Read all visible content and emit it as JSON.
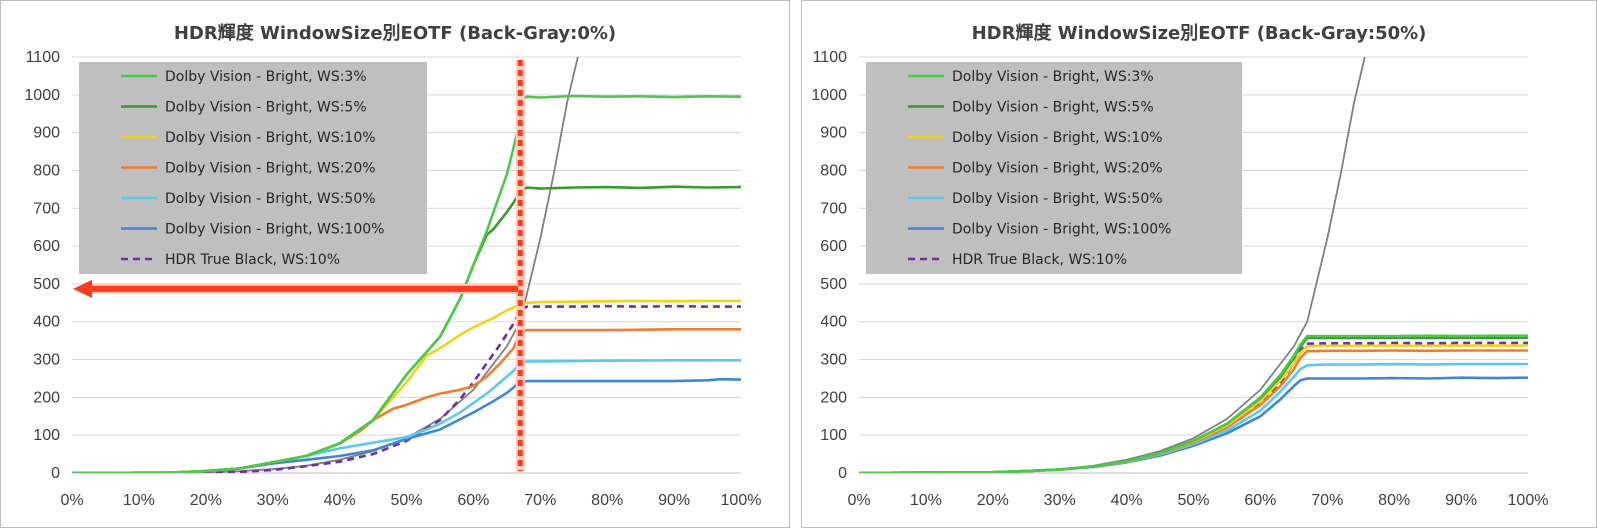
{
  "chart_data": [
    {
      "type": "line",
      "title": "HDR輝度 WindowSize別EOTF (Back-Gray:0%)",
      "xlabel": "",
      "ylabel": "",
      "xlim": [
        0,
        100
      ],
      "ylim": [
        0,
        1100
      ],
      "x_ticks": [
        "0%",
        "10%",
        "20%",
        "30%",
        "40%",
        "50%",
        "60%",
        "70%",
        "80%",
        "90%",
        "100%"
      ],
      "y_ticks": [
        "0",
        "100",
        "200",
        "300",
        "400",
        "500",
        "600",
        "700",
        "800",
        "900",
        "1000",
        "1100"
      ],
      "legend_position": "top-left",
      "grid": "horizontal",
      "annotation": {
        "x": 67,
        "y": 487,
        "color": "#ff3b1f"
      },
      "reference_curve": {
        "color": "#808080",
        "x": [
          0,
          10,
          20,
          25,
          30,
          35,
          40,
          45,
          50,
          55,
          60,
          65,
          67,
          70,
          72,
          74,
          75.6
        ],
        "y": [
          0,
          0.3,
          2,
          5,
          10,
          19,
          35,
          58,
          92,
          143,
          220,
          335,
          400,
          620,
          790,
          980,
          1100
        ]
      },
      "series": [
        {
          "name": "Dolby Vision - Bright, WS:3%",
          "color": "#4cc94c",
          "dash": false,
          "x": [
            0,
            15,
            20,
            25,
            30,
            35,
            40,
            45,
            50,
            53,
            55,
            58,
            60,
            62,
            63,
            65,
            66,
            66.8,
            67,
            68,
            70,
            75,
            80,
            85,
            90,
            95,
            100
          ],
          "y": [
            0,
            1,
            5,
            12,
            28,
            45,
            78,
            140,
            260,
            320,
            360,
            460,
            550,
            640,
            690,
            790,
            860,
            920,
            985,
            995,
            993,
            997,
            995,
            996,
            994,
            996,
            995
          ]
        },
        {
          "name": "Dolby Vision - Bright, WS:5%",
          "color": "#3a9a2e",
          "dash": false,
          "x": [
            0,
            15,
            20,
            25,
            30,
            35,
            40,
            45,
            50,
            53,
            55,
            58,
            60,
            62,
            63,
            65,
            66,
            67,
            68,
            70,
            75,
            80,
            85,
            90,
            95,
            100
          ],
          "y": [
            0,
            1,
            5,
            12,
            28,
            45,
            78,
            140,
            260,
            320,
            360,
            460,
            550,
            630,
            645,
            690,
            715,
            745,
            755,
            752,
            755,
            756,
            754,
            757,
            755,
            756
          ]
        },
        {
          "name": "Dolby Vision - Bright, WS:10%",
          "color": "#f2d21a",
          "dash": false,
          "x": [
            0,
            15,
            20,
            25,
            30,
            35,
            40,
            45,
            50,
            53,
            55,
            58,
            60,
            63,
            65,
            67,
            68,
            70,
            75,
            80,
            85,
            90,
            95,
            100
          ],
          "y": [
            0,
            1,
            5,
            12,
            28,
            45,
            78,
            140,
            240,
            310,
            330,
            365,
            385,
            410,
            430,
            445,
            450,
            452,
            453,
            454,
            455,
            454,
            455,
            455
          ]
        },
        {
          "name": "Dolby Vision - Bright, WS:20%",
          "color": "#ed7d31",
          "dash": false,
          "x": [
            0,
            15,
            20,
            25,
            30,
            35,
            40,
            43,
            45,
            48,
            50,
            53,
            55,
            58,
            60,
            62,
            64,
            66,
            67,
            68,
            70,
            75,
            80,
            85,
            90,
            95,
            100
          ],
          "y": [
            0,
            1,
            5,
            12,
            28,
            45,
            78,
            110,
            140,
            170,
            180,
            200,
            210,
            220,
            230,
            255,
            290,
            330,
            370,
            378,
            378,
            378,
            378,
            379,
            380,
            380,
            380
          ]
        },
        {
          "name": "Dolby Vision - Bright, WS:50%",
          "color": "#5bc8f0",
          "dash": false,
          "x": [
            0,
            15,
            20,
            25,
            30,
            35,
            40,
            45,
            50,
            53,
            55,
            58,
            60,
            62,
            64,
            66,
            67,
            68,
            70,
            80,
            90,
            100
          ],
          "y": [
            0,
            1,
            5,
            12,
            28,
            45,
            65,
            80,
            95,
            115,
            130,
            160,
            185,
            210,
            240,
            270,
            290,
            295,
            295,
            297,
            298,
            298
          ]
        },
        {
          "name": "Dolby Vision - Bright, WS:100%",
          "color": "#3f86d4",
          "dash": false,
          "x": [
            0,
            15,
            20,
            25,
            30,
            35,
            40,
            45,
            50,
            55,
            60,
            63,
            65,
            67,
            68,
            70,
            80,
            90,
            95,
            97,
            100
          ],
          "y": [
            0,
            1,
            5,
            12,
            25,
            35,
            45,
            60,
            90,
            115,
            160,
            190,
            212,
            240,
            243,
            243,
            243,
            243,
            245,
            248,
            247
          ]
        },
        {
          "name": "HDR True Black, WS:10%",
          "color": "#7030a0",
          "dash": true,
          "x": [
            0,
            20,
            25,
            30,
            35,
            40,
            45,
            50,
            55,
            58,
            60,
            62,
            64,
            66,
            67,
            68,
            70,
            75,
            80,
            85,
            90,
            95,
            100
          ],
          "y": [
            0,
            1,
            3,
            8,
            18,
            30,
            50,
            85,
            140,
            195,
            240,
            290,
            340,
            395,
            430,
            440,
            440,
            440,
            441,
            440,
            441,
            440,
            440
          ]
        }
      ]
    },
    {
      "type": "line",
      "title": "HDR輝度 WindowSize別EOTF (Back-Gray:50%)",
      "xlabel": "",
      "ylabel": "",
      "xlim": [
        0,
        100
      ],
      "ylim": [
        0,
        1100
      ],
      "x_ticks": [
        "0%",
        "10%",
        "20%",
        "30%",
        "40%",
        "50%",
        "60%",
        "70%",
        "80%",
        "90%",
        "100%"
      ],
      "y_ticks": [
        "0",
        "100",
        "200",
        "300",
        "400",
        "500",
        "600",
        "700",
        "800",
        "900",
        "1000",
        "1100"
      ],
      "legend_position": "top-left",
      "grid": "horizontal",
      "reference_curve": {
        "color": "#808080",
        "x": [
          0,
          10,
          20,
          25,
          30,
          35,
          40,
          45,
          50,
          55,
          60,
          65,
          67,
          70,
          72,
          74,
          75.6
        ],
        "y": [
          0,
          0.3,
          2,
          5,
          10,
          19,
          35,
          58,
          92,
          143,
          220,
          335,
          400,
          620,
          790,
          980,
          1100
        ]
      },
      "series": [
        {
          "name": "Dolby Vision - Bright, WS:3%",
          "color": "#4cc94c",
          "dash": false,
          "x": [
            0,
            20,
            25,
            30,
            35,
            40,
            45,
            50,
            55,
            60,
            63,
            65,
            66,
            67,
            70,
            75,
            80,
            85,
            90,
            95,
            100
          ],
          "y": [
            0,
            2,
            5,
            9,
            17,
            31,
            53,
            85,
            130,
            200,
            260,
            310,
            340,
            362,
            362,
            362,
            362,
            363,
            362,
            363,
            363
          ]
        },
        {
          "name": "Dolby Vision - Bright, WS:5%",
          "color": "#3a9a2e",
          "dash": false,
          "x": [
            0,
            20,
            25,
            30,
            35,
            40,
            45,
            50,
            55,
            60,
            63,
            65,
            66,
            67,
            70,
            75,
            80,
            85,
            90,
            95,
            100
          ],
          "y": [
            0,
            2,
            5,
            9,
            17,
            31,
            53,
            85,
            130,
            198,
            255,
            305,
            335,
            357,
            357,
            357,
            358,
            357,
            358,
            357,
            358
          ]
        },
        {
          "name": "Dolby Vision - Bright, WS:10%",
          "color": "#f2d21a",
          "dash": false,
          "x": [
            0,
            20,
            25,
            30,
            35,
            40,
            45,
            50,
            55,
            60,
            63,
            65,
            66,
            67,
            70,
            75,
            80,
            85,
            90,
            95,
            100
          ],
          "y": [
            0,
            2,
            5,
            9,
            17,
            30,
            52,
            83,
            126,
            190,
            245,
            290,
            318,
            335,
            336,
            336,
            337,
            336,
            337,
            337,
            337
          ]
        },
        {
          "name": "Dolby Vision - Bright, WS:20%",
          "color": "#ed7d31",
          "dash": false,
          "x": [
            0,
            20,
            25,
            30,
            35,
            40,
            45,
            50,
            55,
            60,
            63,
            65,
            66,
            67,
            70,
            75,
            80,
            85,
            90,
            95,
            100
          ],
          "y": [
            0,
            2,
            5,
            9,
            17,
            30,
            51,
            80,
            120,
            180,
            230,
            275,
            305,
            322,
            323,
            323,
            324,
            323,
            324,
            324,
            324
          ]
        },
        {
          "name": "Dolby Vision - Bright, WS:50%",
          "color": "#5bc8f0",
          "dash": false,
          "x": [
            0,
            20,
            25,
            30,
            35,
            40,
            45,
            50,
            55,
            60,
            63,
            65,
            66,
            67,
            70,
            75,
            80,
            85,
            90,
            95,
            100
          ],
          "y": [
            0,
            2,
            5,
            9,
            17,
            29,
            49,
            76,
            112,
            165,
            215,
            255,
            275,
            285,
            287,
            287,
            288,
            287,
            288,
            288,
            288
          ]
        },
        {
          "name": "Dolby Vision - Bright, WS:100%",
          "color": "#3f86d4",
          "dash": false,
          "x": [
            0,
            20,
            25,
            30,
            35,
            40,
            45,
            50,
            55,
            60,
            63,
            65,
            66,
            67,
            70,
            75,
            80,
            85,
            90,
            95,
            100
          ],
          "y": [
            0,
            2,
            5,
            9,
            16,
            28,
            46,
            72,
            105,
            150,
            195,
            230,
            245,
            250,
            250,
            250,
            251,
            250,
            252,
            251,
            252
          ]
        },
        {
          "name": "HDR True Black, WS:10%",
          "color": "#7030a0",
          "dash": true,
          "x": [
            0,
            20,
            25,
            30,
            35,
            40,
            45,
            50,
            55,
            60,
            63,
            65,
            66,
            67,
            70,
            75,
            80,
            85,
            90,
            95,
            100
          ],
          "y": [
            0,
            2,
            5,
            9,
            17,
            29,
            50,
            80,
            122,
            185,
            240,
            290,
            325,
            342,
            343,
            343,
            344,
            343,
            344,
            344,
            344
          ]
        }
      ]
    }
  ]
}
